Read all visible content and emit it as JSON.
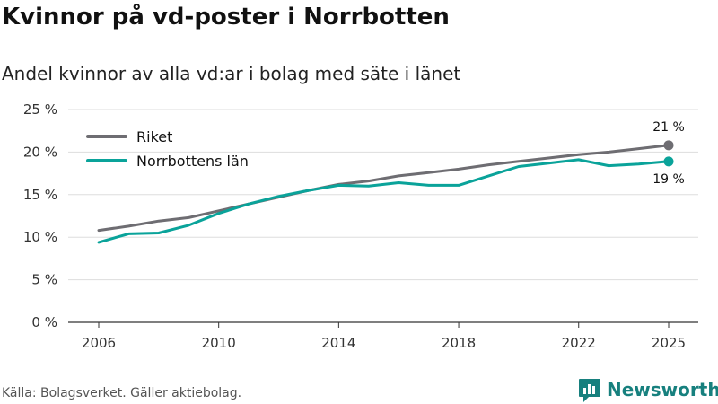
{
  "header": {
    "title": "Kvinnor på vd-poster i Norrbotten",
    "subtitle": "Andel kvinnor av alla vd:ar i bolag med säte i länet"
  },
  "footer": {
    "source": "Källa: Bolagsverket. Gäller aktiebolag.",
    "brand": "Newsworthy",
    "brand_icon": "newsworthy-logo-icon"
  },
  "colors": {
    "riket": "#6e6d72",
    "norrbotten": "#0aa39a",
    "grid": "#dddddd",
    "brand": "#17807e"
  },
  "chart_data": {
    "type": "line",
    "title": "Kvinnor på vd-poster i Norrbotten",
    "subtitle": "Andel kvinnor av alla vd:ar i bolag med säte i länet",
    "xlabel": "",
    "ylabel": "",
    "x": [
      2006,
      2007,
      2008,
      2009,
      2010,
      2011,
      2012,
      2013,
      2014,
      2015,
      2016,
      2017,
      2018,
      2019,
      2020,
      2021,
      2022,
      2023,
      2024,
      2025
    ],
    "x_ticks": [
      2006,
      2010,
      2014,
      2018,
      2022,
      2025
    ],
    "x_tick_labels": [
      "2006",
      "2010",
      "2014",
      "2018",
      "2022",
      "2025"
    ],
    "xlim": [
      2006,
      2025
    ],
    "ylim": [
      0,
      25
    ],
    "y_ticks": [
      0,
      5,
      10,
      15,
      20,
      25
    ],
    "y_tick_labels": [
      "0 %",
      "5 %",
      "10 %",
      "15 %",
      "20 %",
      "25 %"
    ],
    "grid": true,
    "legend_position": "top-left",
    "series": [
      {
        "name": "Riket",
        "values": [
          10.8,
          11.3,
          11.9,
          12.3,
          13.1,
          13.9,
          14.7,
          15.5,
          16.2,
          16.6,
          17.2,
          17.6,
          18.0,
          18.5,
          18.9,
          19.3,
          19.7,
          20.0,
          20.4,
          20.8
        ],
        "end_label": "21 %"
      },
      {
        "name": "Norrbottens län",
        "values": [
          9.4,
          10.4,
          10.5,
          11.4,
          12.8,
          13.9,
          14.8,
          15.5,
          16.1,
          16.0,
          16.4,
          16.1,
          16.1,
          17.2,
          18.3,
          18.7,
          19.1,
          18.4,
          18.6,
          18.9
        ],
        "end_label": "19 %"
      }
    ]
  }
}
